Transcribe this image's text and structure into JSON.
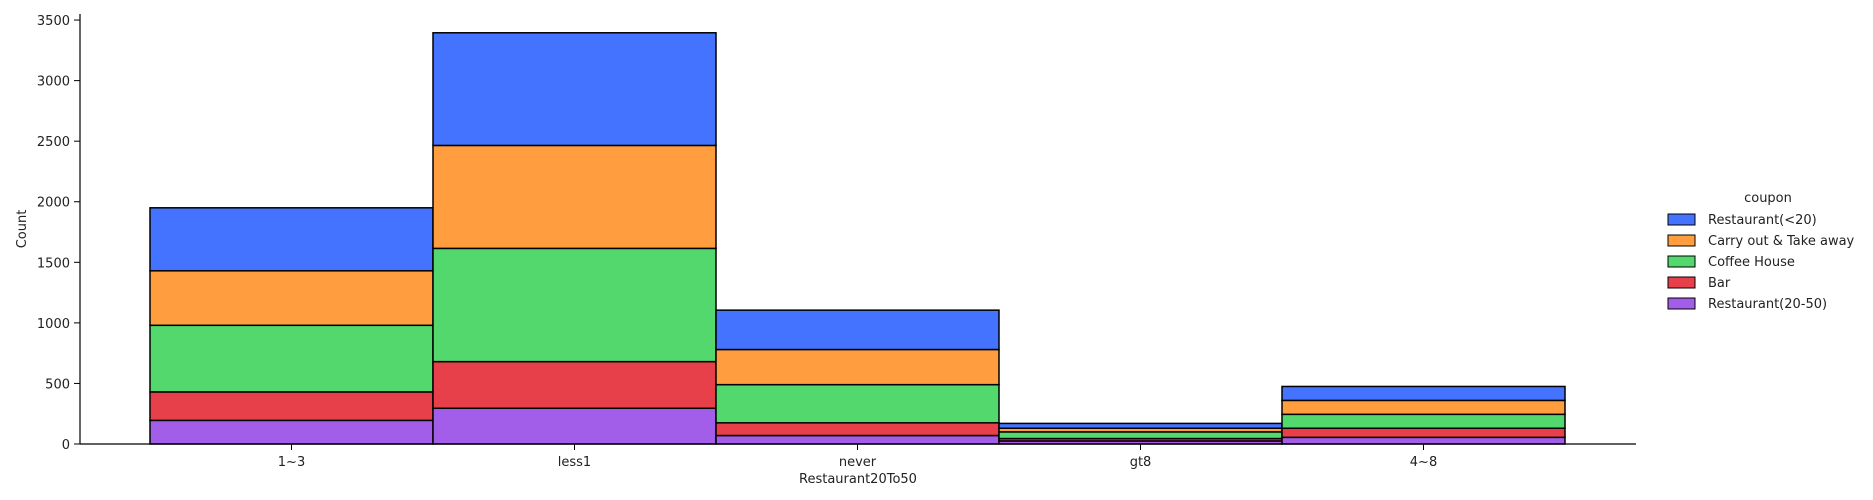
{
  "chart_data": {
    "type": "bar",
    "stacked": true,
    "title": "",
    "xlabel": "Restaurant20To50",
    "ylabel": "Count",
    "ylim": [
      0,
      3550
    ],
    "yticks": [
      0,
      500,
      1000,
      1500,
      2000,
      2500,
      3000,
      3500
    ],
    "grid": false,
    "categories": [
      "1~3",
      "less1",
      "never",
      "gt8",
      "4~8"
    ],
    "legend": {
      "title": "coupon",
      "placement": "right"
    },
    "series": [
      {
        "name": "Restaurant(20-50)",
        "color": "#a25ee8",
        "values": [
          195,
          295,
          70,
          25,
          55
        ]
      },
      {
        "name": "Bar",
        "color": "#e8404a",
        "values": [
          235,
          385,
          105,
          20,
          75
        ]
      },
      {
        "name": "Coffee House",
        "color": "#52d86c",
        "values": [
          550,
          935,
          315,
          55,
          115
        ]
      },
      {
        "name": "Carry out & Take away",
        "color": "#ff9d3f",
        "values": [
          450,
          850,
          290,
          30,
          115
        ]
      },
      {
        "name": "Restaurant(<20)",
        "color": "#4474ff",
        "values": [
          520,
          930,
          325,
          40,
          115
        ]
      }
    ],
    "legend_order": [
      "Restaurant(<20)",
      "Carry out & Take away",
      "Coffee House",
      "Bar",
      "Restaurant(20-50)"
    ]
  }
}
